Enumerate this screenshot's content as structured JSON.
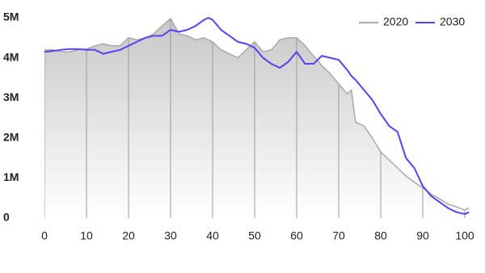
{
  "chart_data": {
    "type": "line",
    "x": [
      0,
      2,
      4,
      6,
      8,
      10,
      12,
      14,
      16,
      18,
      20,
      22,
      24,
      26,
      28,
      30,
      32,
      34,
      36,
      38,
      39,
      40,
      42,
      44,
      46,
      48,
      50,
      52,
      54,
      56,
      58,
      60,
      62,
      64,
      66,
      68,
      70,
      72,
      73,
      74,
      76,
      78,
      80,
      82,
      84,
      86,
      88,
      90,
      92,
      94,
      96,
      98,
      100,
      101
    ],
    "series": [
      {
        "name": "2020",
        "color": "#a9a9a9",
        "area": true,
        "values": [
          4.2,
          4.2,
          4.15,
          4.15,
          4.2,
          4.22,
          4.3,
          4.35,
          4.3,
          4.3,
          4.5,
          4.45,
          4.5,
          4.6,
          4.8,
          4.98,
          4.6,
          4.55,
          4.45,
          4.5,
          4.45,
          4.4,
          4.2,
          4.1,
          4.0,
          4.2,
          4.4,
          4.15,
          4.2,
          4.45,
          4.5,
          4.5,
          4.3,
          4.05,
          3.8,
          3.6,
          3.35,
          3.1,
          3.2,
          2.4,
          2.3,
          2.0,
          1.65,
          1.45,
          1.25,
          1.05,
          0.9,
          0.75,
          0.6,
          0.48,
          0.35,
          0.28,
          0.2,
          0.25
        ]
      },
      {
        "name": "2030",
        "color": "#5b3ff0",
        "area": false,
        "values": [
          4.15,
          4.17,
          4.2,
          4.22,
          4.22,
          4.2,
          4.2,
          4.1,
          4.15,
          4.2,
          4.3,
          4.4,
          4.5,
          4.55,
          4.55,
          4.7,
          4.65,
          4.7,
          4.8,
          4.95,
          5.0,
          4.95,
          4.7,
          4.55,
          4.4,
          4.35,
          4.25,
          4.0,
          3.85,
          3.75,
          3.9,
          4.15,
          3.85,
          3.85,
          4.05,
          4.0,
          3.95,
          3.7,
          3.55,
          3.45,
          3.2,
          2.95,
          2.6,
          2.3,
          2.15,
          1.5,
          1.25,
          0.8,
          0.55,
          0.4,
          0.25,
          0.15,
          0.1,
          0.15
        ]
      }
    ],
    "xlim": [
      0,
      100
    ],
    "xticks": [
      0,
      10,
      20,
      30,
      40,
      50,
      60,
      70,
      80,
      90,
      100
    ],
    "ylim": [
      0,
      5
    ],
    "yticks": [
      0,
      {
        "value": 1,
        "label": "1M"
      },
      {
        "value": 2,
        "label": "2M"
      },
      {
        "value": 3,
        "label": "3M"
      },
      {
        "value": 4,
        "label": "4M"
      },
      {
        "value": 5,
        "label": "5M"
      }
    ],
    "grid": true,
    "legend": "top-right"
  }
}
